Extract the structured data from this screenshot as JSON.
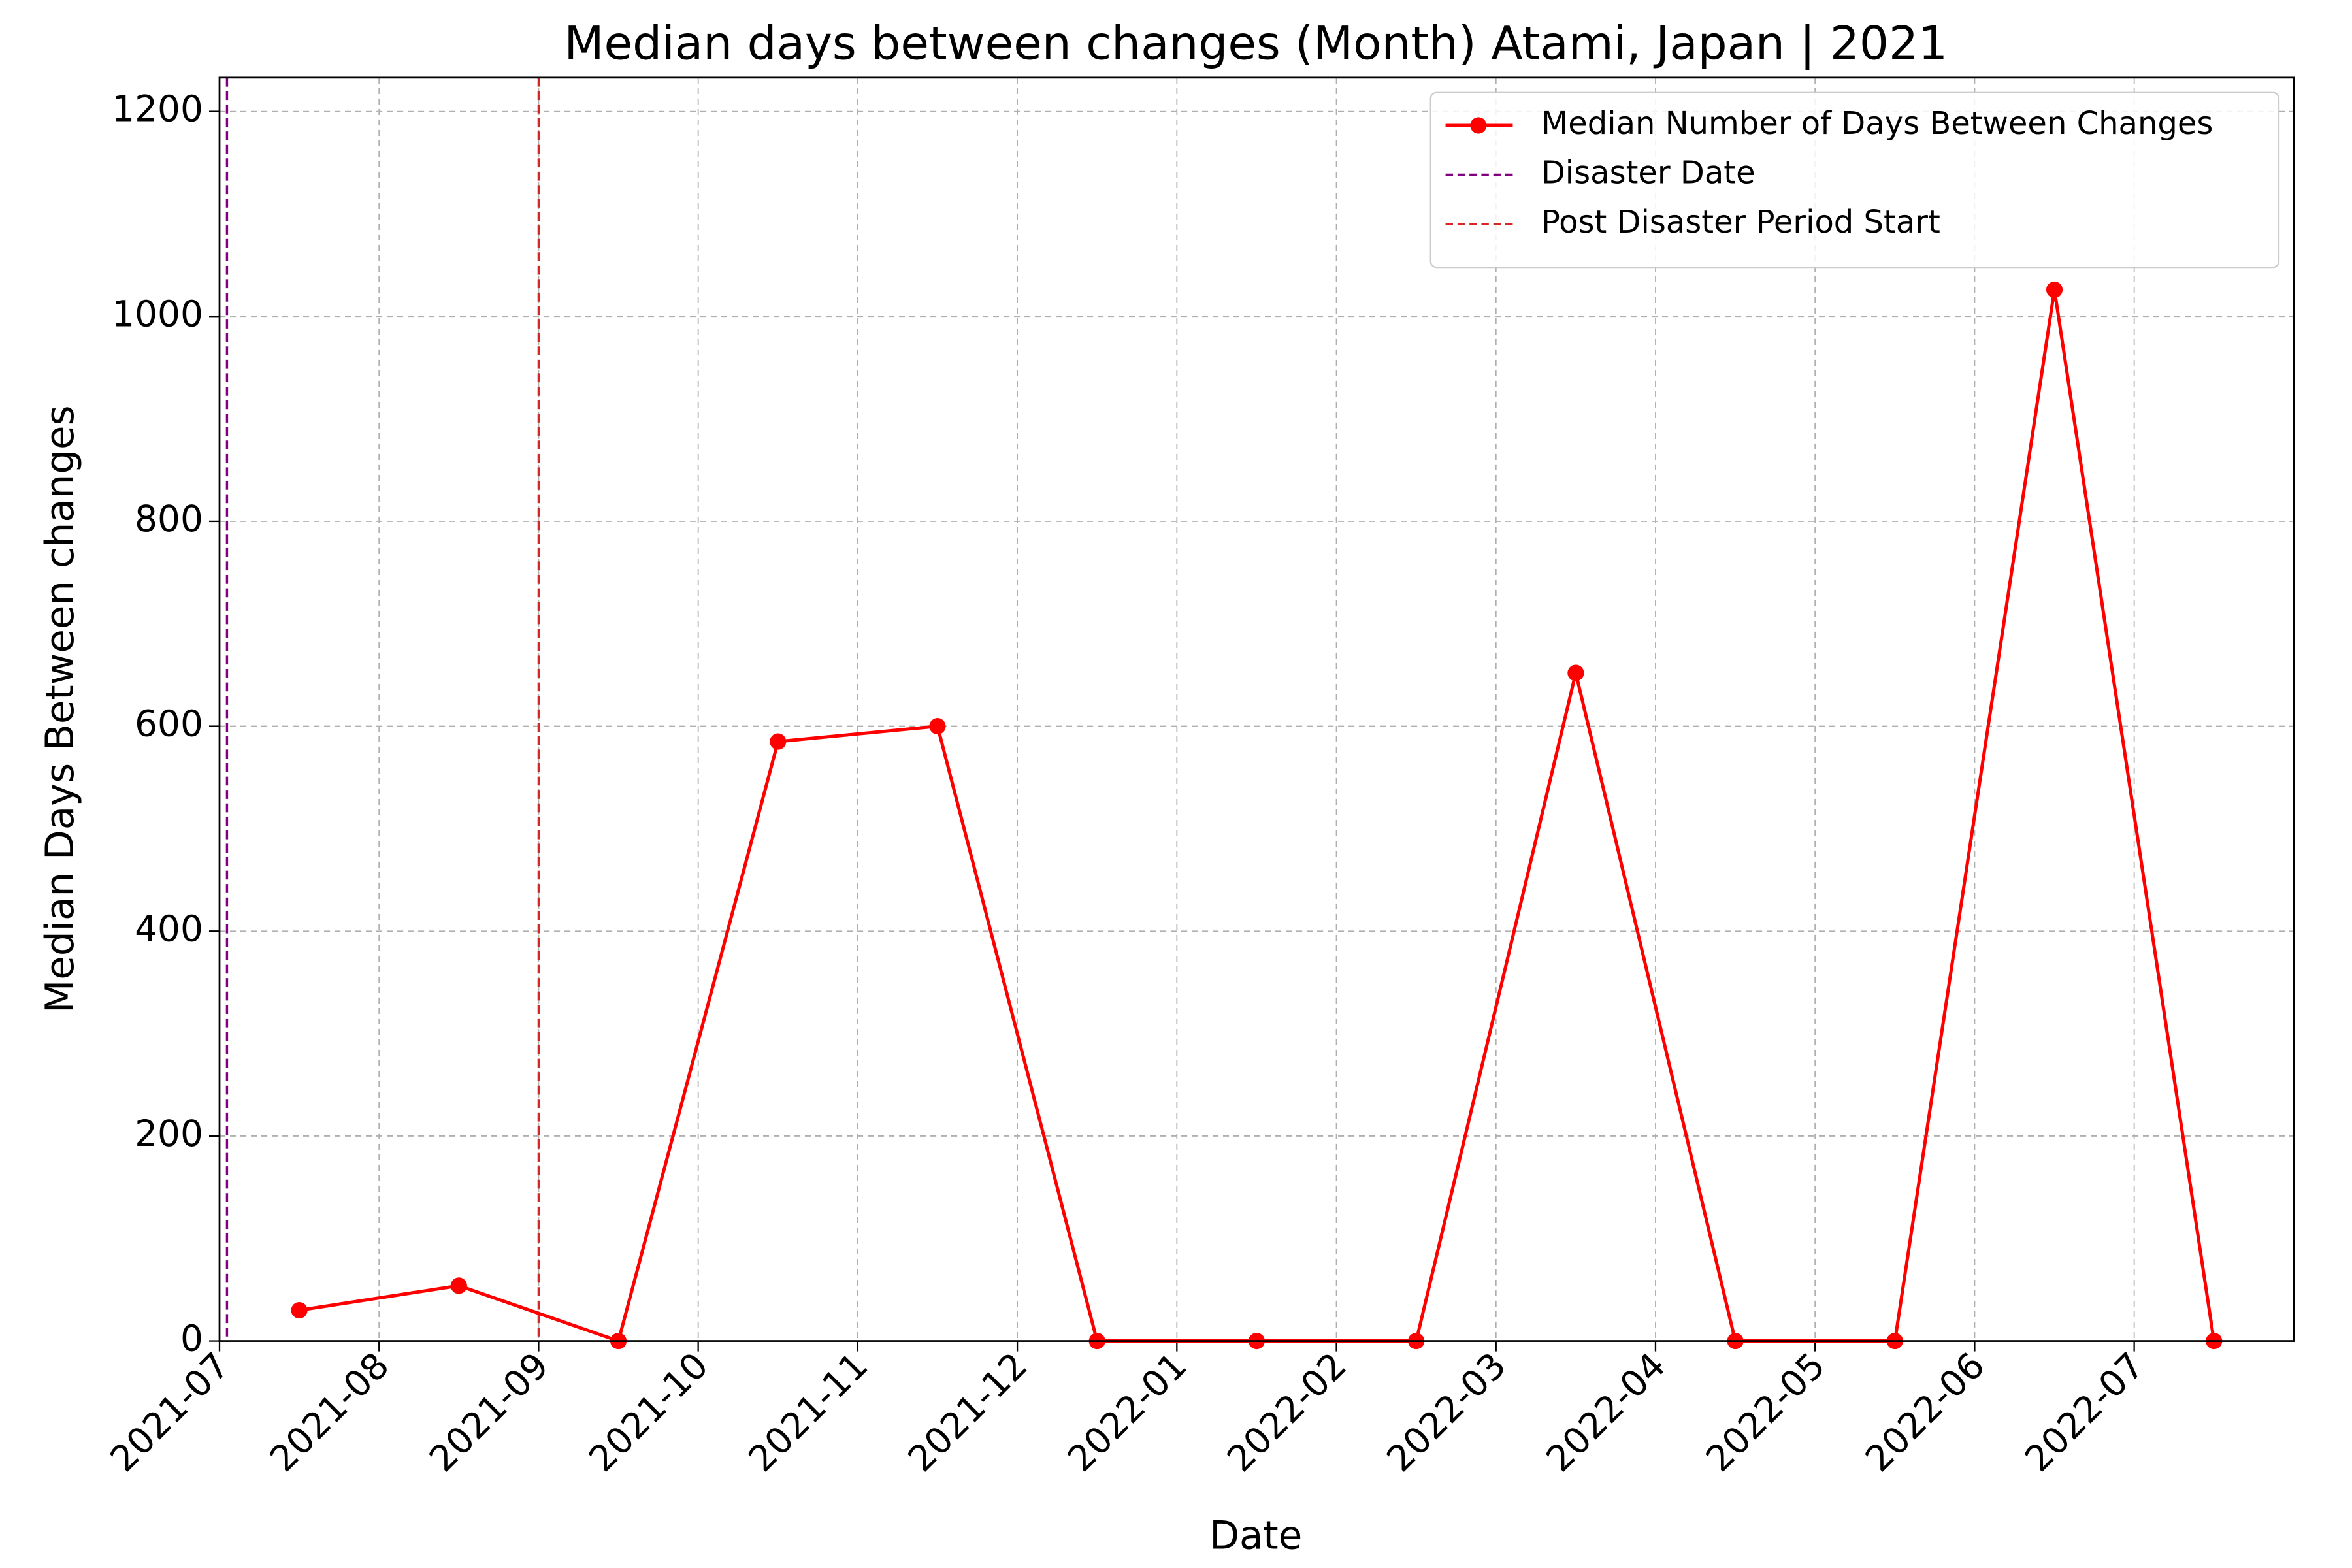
{
  "chart_data": {
    "type": "line",
    "title": "Median days between changes (Month) Atami, Japan | 2021",
    "x_label": "Date",
    "y_label": "Median Days Between changes",
    "x": [
      "2021-07",
      "2021-08",
      "2021-09",
      "2021-10",
      "2021-11",
      "2021-12",
      "2022-01",
      "2022-02",
      "2022-03",
      "2022-04",
      "2022-05",
      "2022-06",
      "2022-07"
    ],
    "series": [
      {
        "name": "Median Number of Days Between Changes",
        "color": "#ff0000",
        "values": [
          30,
          54,
          0,
          585,
          600,
          0,
          0,
          0,
          652,
          0,
          0,
          1026,
          0
        ]
      }
    ],
    "vlines": [
      {
        "name": "Disaster Date",
        "x": "2021-07",
        "color": "#800080"
      },
      {
        "name": "Post Disaster Period Start",
        "x": "2021-09",
        "color": "#d62728"
      }
    ],
    "xlim": [
      "2021-07",
      "2022-08"
    ],
    "xticks": [
      "2021-07",
      "2021-08",
      "2021-09",
      "2021-10",
      "2021-11",
      "2021-12",
      "2022-01",
      "2022-02",
      "2022-03",
      "2022-04",
      "2022-05",
      "2022-06",
      "2022-07"
    ],
    "ylim": [
      0,
      1233
    ],
    "yticks": [
      0,
      200,
      400,
      600,
      800,
      1000,
      1200
    ],
    "grid": true,
    "legend": "upper right"
  }
}
